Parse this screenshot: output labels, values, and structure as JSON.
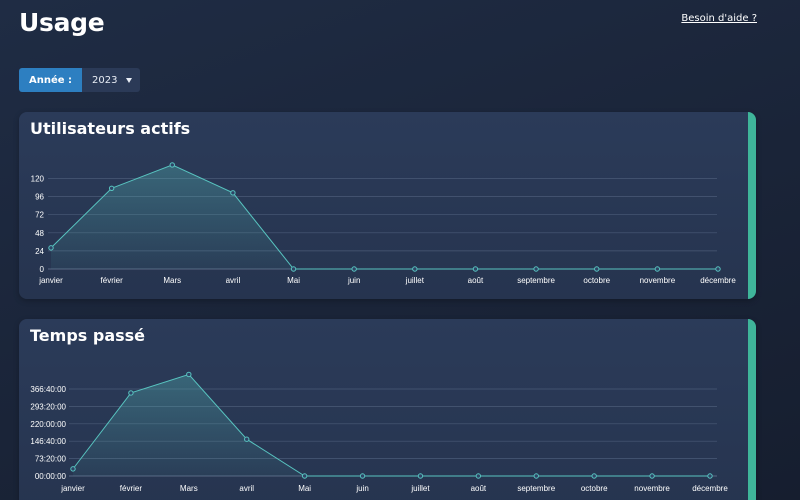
{
  "page": {
    "title": "Usage",
    "help_link": "Besoin d'aide ?"
  },
  "filter": {
    "label": "Année :",
    "value": "2023",
    "caret_icon": "caret-down-icon"
  },
  "colors": {
    "accent_bar": "#3fb59a",
    "line": "#58c4c0",
    "label_bg": "#2d7fc1"
  },
  "charts": [
    {
      "title": "Utilisateurs actifs",
      "chart_data": {
        "type": "area",
        "categories": [
          "janvier",
          "février",
          "Mars",
          "avril",
          "Mai",
          "juin",
          "juillet",
          "août",
          "septembre",
          "octobre",
          "novembre",
          "décembre"
        ],
        "y_ticks": [
          "0",
          "24",
          "48",
          "72",
          "96",
          "120"
        ],
        "values": [
          28,
          107,
          138,
          101,
          0,
          0,
          0,
          0,
          0,
          0,
          0,
          0
        ],
        "ylim": [
          0,
          120
        ],
        "grid": true
      }
    },
    {
      "title": "Temps passé",
      "chart_data": {
        "type": "area",
        "categories": [
          "janvier",
          "février",
          "Mars",
          "avril",
          "Mai",
          "juin",
          "juillet",
          "août",
          "septembre",
          "octobre",
          "novembre",
          "décembre"
        ],
        "y_ticks": [
          "00:00:00",
          "73:20:00",
          "146:40:00",
          "220:00:00",
          "293:20:00",
          "366:40:00"
        ],
        "values": [
          30,
          350,
          428,
          155,
          0,
          0,
          0,
          0,
          0,
          0,
          0,
          0
        ],
        "value_unit": "hours",
        "ylim": [
          0,
          366.67
        ],
        "grid": true
      }
    }
  ]
}
